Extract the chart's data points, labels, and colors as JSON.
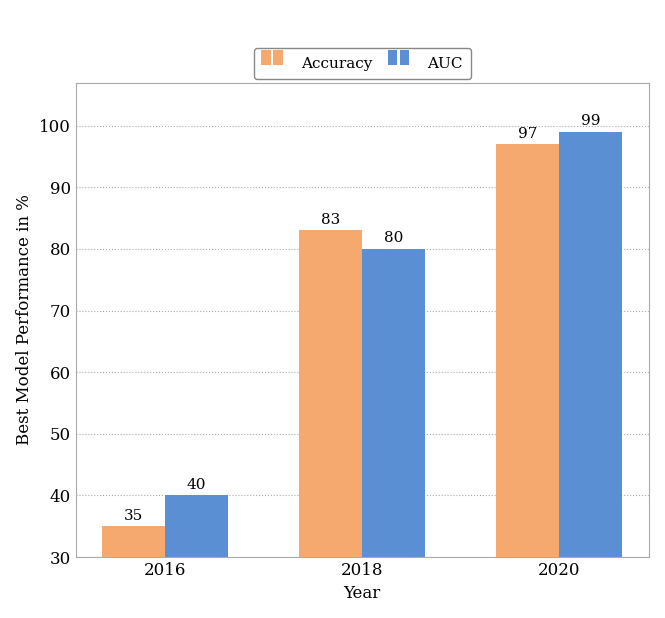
{
  "years": [
    "2016",
    "2018",
    "2020"
  ],
  "accuracy": [
    35,
    83,
    97
  ],
  "auc": [
    40,
    80,
    99
  ],
  "accuracy_color": "#F5A96E",
  "auc_color": "#5B8FD4",
  "ylabel": "Best Model Performance in %",
  "xlabel": "Year",
  "ylim": [
    30,
    107
  ],
  "yticks": [
    30,
    40,
    50,
    60,
    70,
    80,
    90,
    100
  ],
  "bar_width": 0.32,
  "legend_labels": [
    "Accuracy",
    "AUC"
  ],
  "annotation_fontsize": 11,
  "axis_fontsize": 12,
  "legend_fontsize": 11,
  "background_color": "#ffffff",
  "grid_color": "#aaaaaa",
  "spine_color": "#aaaaaa"
}
